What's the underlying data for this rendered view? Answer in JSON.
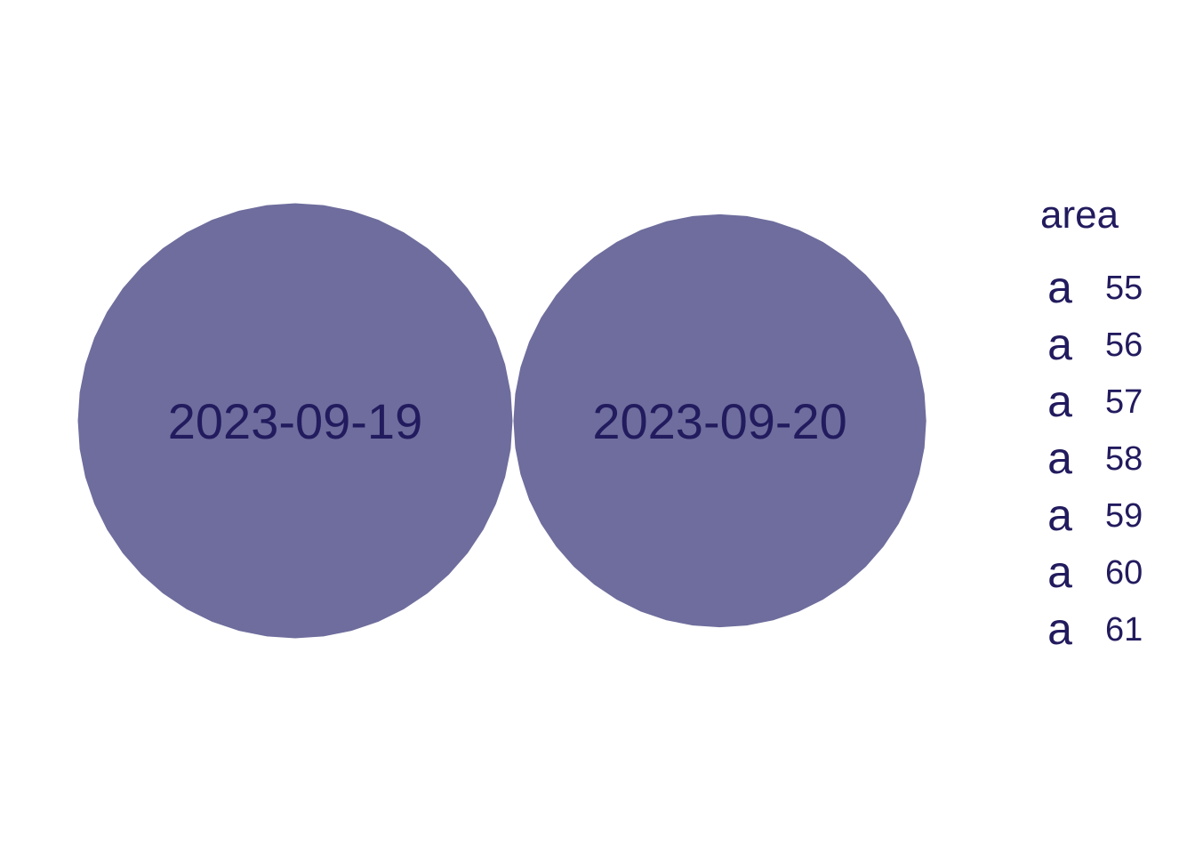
{
  "chart_data": {
    "type": "scatter",
    "subtype": "packed-bubble",
    "bubbles": [
      {
        "label": "2023-09-19",
        "area": 61
      },
      {
        "label": "2023-09-20",
        "area": 55
      }
    ],
    "legend": {
      "title": "area",
      "key_glyph": "a",
      "entries": [
        "55",
        "56",
        "57",
        "58",
        "59",
        "60",
        "61"
      ],
      "position": "right"
    },
    "size_range": [
      55,
      61
    ],
    "grid": false,
    "axes": false
  },
  "colors": {
    "bubble_fill": "#6e6d9d",
    "text": "#221b5e",
    "background": "#ffffff"
  }
}
